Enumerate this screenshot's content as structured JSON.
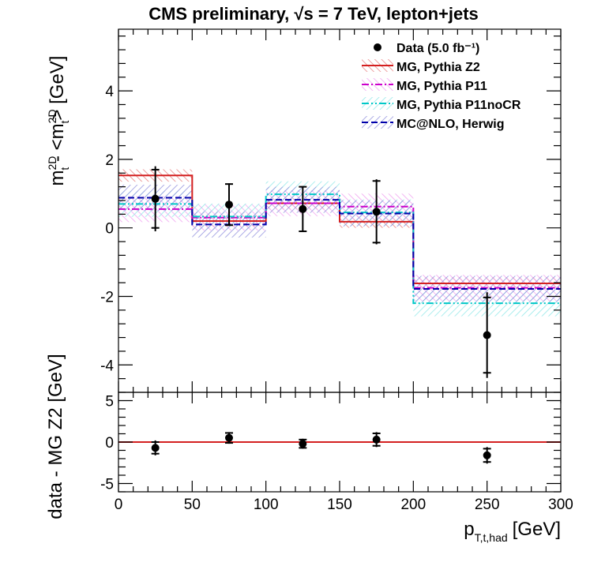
{
  "chart_data": {
    "type": "histogram",
    "title": "CMS preliminary,   √s = 7 TeV, lepton+jets",
    "xlabel": "p",
    "xlabel_sub": "T,t,had",
    "xlabel_unit": "[GeV]",
    "xlim": [
      0,
      300
    ],
    "x_ticks": [
      0,
      50,
      100,
      150,
      200,
      250,
      300
    ],
    "bin_edges": [
      0,
      50,
      100,
      150,
      200,
      300
    ],
    "bin_centers": [
      25,
      75,
      125,
      175,
      250
    ],
    "grid": false,
    "legend_position": "top-right",
    "top_panel": {
      "ylabel": "m_t^2D - <m_t^2D> [GeV]",
      "ylim": [
        -4.8,
        5.8
      ],
      "y_ticks": [
        -4,
        -2,
        0,
        2,
        4
      ],
      "data": {
        "name": "Data (5.0 fb⁻¹)",
        "y": [
          0.85,
          0.68,
          0.55,
          0.47,
          -3.13
        ],
        "stat_err": [
          0.85,
          0.6,
          0.65,
          0.9,
          1.1
        ],
        "total_err": [
          0.95,
          0.62,
          0.67,
          0.95,
          1.25
        ]
      },
      "series": [
        {
          "name": "MG, Pythia Z2",
          "color": "#d42020",
          "style": "solid",
          "values": [
            1.53,
            0.2,
            0.72,
            0.18,
            -1.62
          ],
          "band": 0.18
        },
        {
          "name": "MG, Pythia P11",
          "color": "#cc00cc",
          "style": "dashdot",
          "values": [
            0.55,
            0.3,
            0.72,
            0.62,
            -1.75
          ],
          "band": 0.38
        },
        {
          "name": "MG, Pythia P11noCR",
          "color": "#00c8c8",
          "style": "dashdotdot",
          "values": [
            0.7,
            0.33,
            0.98,
            0.45,
            -2.2
          ],
          "band": 0.38
        },
        {
          "name": "MC@NLO, Herwig",
          "color": "#0000aa",
          "style": "dashed",
          "values": [
            0.88,
            0.1,
            0.82,
            0.42,
            -1.78
          ],
          "band": 0.38
        }
      ]
    },
    "bottom_panel": {
      "ylabel": "data - MG Z2 [GeV]",
      "ylim": [
        -6,
        6
      ],
      "y_ticks": [
        -5,
        0,
        5
      ],
      "y": [
        -0.7,
        0.5,
        -0.2,
        0.3,
        -1.6
      ],
      "stat_err": [
        0.7,
        0.6,
        0.5,
        0.75,
        0.8
      ],
      "total_err": [
        0.9,
        0.7,
        0.6,
        0.9,
        1.0
      ],
      "reference_line": 0,
      "reference_color": "#d42020"
    }
  }
}
